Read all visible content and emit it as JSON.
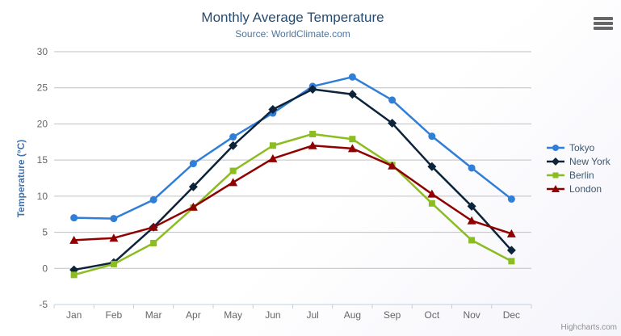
{
  "credits": "Highcharts.com",
  "export_menu": {
    "icon": "hamburger-icon"
  },
  "chart_data": {
    "type": "line",
    "title": "Monthly Average Temperature",
    "subtitle": "Source: WorldClimate.com",
    "xlabel": "",
    "ylabel": "Temperature (°C)",
    "ylim": [
      -5,
      30
    ],
    "ytick_step": 5,
    "grid": true,
    "legend_position": "right",
    "categories": [
      "Jan",
      "Feb",
      "Mar",
      "Apr",
      "May",
      "Jun",
      "Jul",
      "Aug",
      "Sep",
      "Oct",
      "Nov",
      "Dec"
    ],
    "series": [
      {
        "name": "Tokyo",
        "color": "#2f7ed8",
        "marker": "circle",
        "values": [
          7.0,
          6.9,
          9.5,
          14.5,
          18.2,
          21.5,
          25.2,
          26.5,
          23.3,
          18.3,
          13.9,
          9.6
        ]
      },
      {
        "name": "New York",
        "color": "#0d233a",
        "marker": "diamond",
        "values": [
          -0.2,
          0.8,
          5.7,
          11.3,
          17.0,
          22.0,
          24.8,
          24.1,
          20.1,
          14.1,
          8.6,
          2.5
        ]
      },
      {
        "name": "Berlin",
        "color": "#8bbc21",
        "marker": "square",
        "values": [
          -0.9,
          0.6,
          3.5,
          8.4,
          13.5,
          17.0,
          18.6,
          17.9,
          14.3,
          9.0,
          3.9,
          1.0
        ]
      },
      {
        "name": "London",
        "color": "#910000",
        "marker": "triangle",
        "values": [
          3.9,
          4.2,
          5.7,
          8.5,
          11.9,
          15.2,
          17.0,
          16.6,
          14.2,
          10.3,
          6.6,
          4.8
        ]
      }
    ],
    "axis_colors": {
      "grid_line": "#c0c0c0",
      "axis_line": "#c0d0e0",
      "tick_label": "#666666"
    }
  }
}
